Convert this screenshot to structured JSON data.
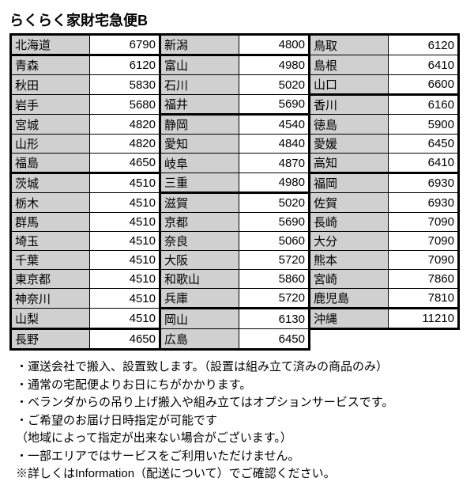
{
  "title": "らくらく家財宅急便B",
  "grid": [
    [
      {
        "r": "北海道",
        "p": "6790",
        "s": true,
        "st": true
      },
      {
        "r": "新潟",
        "p": "4800",
        "s": true,
        "st": true
      },
      {
        "r": "鳥取",
        "p": "6120",
        "st": true
      }
    ],
    [
      {
        "r": "青森",
        "p": "6120"
      },
      {
        "r": "富山",
        "p": "4980"
      },
      {
        "r": "島根",
        "p": "6410"
      }
    ],
    [
      {
        "r": "秋田",
        "p": "5830"
      },
      {
        "r": "石川",
        "p": "5020"
      },
      {
        "r": "山口",
        "p": "6600",
        "sb": true
      }
    ],
    [
      {
        "r": "岩手",
        "p": "5680"
      },
      {
        "r": "福井",
        "p": "5690",
        "sb": true
      },
      {
        "r": "香川",
        "p": "6160",
        "st": true
      }
    ],
    [
      {
        "r": "宮城",
        "p": "4820"
      },
      {
        "r": "静岡",
        "p": "4540",
        "st": true
      },
      {
        "r": "徳島",
        "p": "5900"
      }
    ],
    [
      {
        "r": "山形",
        "p": "4820"
      },
      {
        "r": "愛知",
        "p": "4840"
      },
      {
        "r": "愛媛",
        "p": "6450"
      }
    ],
    [
      {
        "r": "福島",
        "p": "4650",
        "sb": true
      },
      {
        "r": "岐阜",
        "p": "4870"
      },
      {
        "r": "高知",
        "p": "6410",
        "sb": true
      }
    ],
    [
      {
        "r": "茨城",
        "p": "4510"
      },
      {
        "r": "三重",
        "p": "4980",
        "sb": true
      },
      {
        "r": "福岡",
        "p": "6930",
        "st": true
      }
    ],
    [
      {
        "r": "栃木",
        "p": "4510"
      },
      {
        "r": "滋賀",
        "p": "5020",
        "st": true
      },
      {
        "r": "佐賀",
        "p": "6930"
      }
    ],
    [
      {
        "r": "群馬",
        "p": "4510"
      },
      {
        "r": "京都",
        "p": "5690"
      },
      {
        "r": "長崎",
        "p": "7090"
      }
    ],
    [
      {
        "r": "埼玉",
        "p": "4510"
      },
      {
        "r": "奈良",
        "p": "5060"
      },
      {
        "r": "大分",
        "p": "7090"
      }
    ],
    [
      {
        "r": "千葉",
        "p": "4510"
      },
      {
        "r": "大阪",
        "p": "5720"
      },
      {
        "r": "熊本",
        "p": "7090"
      }
    ],
    [
      {
        "r": "東京都",
        "p": "4510"
      },
      {
        "r": "和歌山",
        "p": "5860"
      },
      {
        "r": "宮崎",
        "p": "7860"
      }
    ],
    [
      {
        "r": "神奈川",
        "p": "4510"
      },
      {
        "r": "兵庫",
        "p": "5720",
        "sb": true
      },
      {
        "r": "鹿児島",
        "p": "7810",
        "sb": true
      }
    ],
    [
      {
        "r": "山梨",
        "p": "4510",
        "sb": true
      },
      {
        "r": "岡山",
        "p": "6130",
        "st": true
      },
      {
        "r": "沖縄",
        "p": "11210",
        "s": true,
        "st": true,
        "sb": true
      }
    ],
    [
      {
        "r": "長野",
        "p": "4650",
        "s": true,
        "sb": true
      },
      {
        "r": "広島",
        "p": "6450",
        "sb": true
      },
      null
    ]
  ],
  "notes": [
    "・運送会社で搬入、設置致します。（設置は組み立て済みの商品のみ）",
    "・通常の宅配便よりお日にちがかかります。",
    "・ベランダからの吊り上げ搬入や組み立てはオプションサービスです。",
    "・ご希望のお届け日時指定が可能です",
    "（地域によって指定が出来ない場合がございます。）",
    "・一部エリアではサービスをご利用いただけません。",
    "※詳しくはInformation（配送について）でご確認ください。"
  ]
}
